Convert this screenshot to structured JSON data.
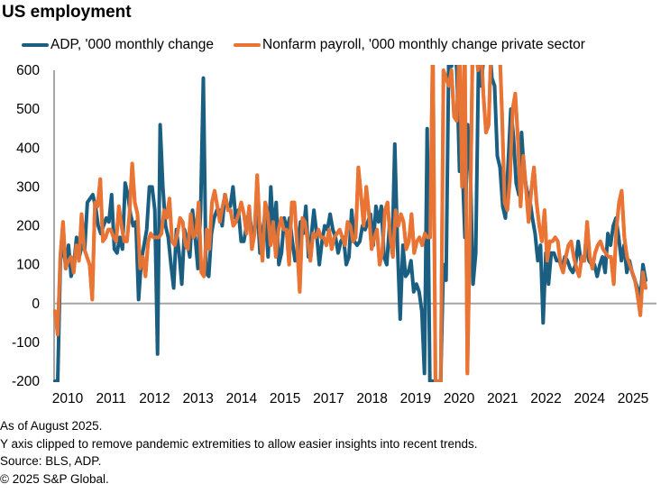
{
  "chart_data": {
    "type": "line",
    "title": "US employment",
    "xlabel": "",
    "ylabel": "",
    "ylim": [
      -200,
      600
    ],
    "yticks": [
      -200,
      -100,
      0,
      100,
      200,
      300,
      400,
      500,
      600
    ],
    "xtick_labels": [
      "2010",
      "2011",
      "2012",
      "2013",
      "2014",
      "2015",
      "2017",
      "2018",
      "2019",
      "2020",
      "2021",
      "2022",
      "2024",
      "2025"
    ],
    "grid": false,
    "legend_position": "top",
    "series": [
      {
        "name": "ADP, '000 monthly change",
        "color": "#1a5f82",
        "values": [
          -200,
          -200,
          110,
          160,
          90,
          150,
          70,
          100,
          170,
          120,
          150,
          140,
          260,
          270,
          280,
          250,
          200,
          180,
          200,
          220,
          210,
          280,
          140,
          130,
          170,
          140,
          310,
          280,
          230,
          200,
          210,
          10,
          110,
          150,
          190,
          300,
          300,
          240,
          -130,
          460,
          300,
          200,
          170,
          100,
          40,
          190,
          130,
          50,
          190,
          160,
          120,
          240,
          170,
          90,
          240,
          580,
          80,
          70,
          180,
          220,
          240,
          240,
          200,
          280,
          250,
          250,
          300,
          220,
          240,
          160,
          160,
          200,
          240,
          180,
          190,
          250,
          130,
          190,
          230,
          120,
          300,
          180,
          260,
          100,
          130,
          220,
          190,
          220,
          160,
          110,
          140,
          210,
          180,
          250,
          120,
          170,
          240,
          180,
          100,
          160,
          200,
          190,
          230,
          190,
          170,
          130,
          160,
          170,
          100,
          120,
          240,
          160,
          150,
          160,
          200,
          190,
          210,
          230,
          150,
          250,
          210,
          250,
          120,
          100,
          200,
          130,
          410,
          150,
          -40,
          150,
          70,
          80,
          110,
          30,
          50,
          30,
          -20,
          -180,
          450,
          -200,
          -200,
          -200,
          -200,
          -200,
          100,
          60,
          640,
          610,
          680,
          600,
          340,
          360,
          170,
          460,
          340,
          50,
          130,
          610,
          560,
          640,
          640,
          690,
          580,
          560,
          380,
          350,
          250,
          220,
          360,
          500,
          430,
          310,
          280,
          440,
          330,
          290,
          270,
          220,
          180,
          110,
          150,
          -50,
          130,
          50,
          130,
          130,
          110,
          110,
          90,
          120,
          110,
          90,
          80,
          100,
          160,
          110,
          110,
          150,
          110,
          100,
          100,
          70,
          100,
          120,
          80,
          180,
          150,
          200,
          220,
          170,
          110,
          150,
          80,
          110,
          80,
          60,
          40,
          10,
          100,
          60
        ],
        "values_note": "approximate monthly readings, clipped to y-range"
      },
      {
        "name": "Nonfarm payroll, '000 monthly change private sector",
        "color": "#ea7434",
        "values": [
          -20,
          -80,
          120,
          210,
          90,
          110,
          120,
          80,
          150,
          110,
          230,
          140,
          120,
          100,
          10,
          260,
          250,
          320,
          160,
          170,
          190,
          190,
          170,
          160,
          250,
          200,
          160,
          160,
          230,
          360,
          260,
          230,
          90,
          120,
          70,
          160,
          180,
          170,
          170,
          170,
          180,
          240,
          220,
          270,
          160,
          150,
          180,
          220,
          210,
          150,
          140,
          230,
          170,
          180,
          260,
          80,
          70,
          190,
          140,
          260,
          290,
          250,
          210,
          250,
          280,
          240,
          240,
          200,
          210,
          230,
          260,
          230,
          180,
          250,
          140,
          180,
          330,
          180,
          110,
          260,
          230,
          150,
          210,
          120,
          190,
          220,
          190,
          190,
          100,
          260,
          260,
          150,
          30,
          220,
          210,
          160,
          110,
          180,
          170,
          190,
          170,
          170,
          150,
          190,
          140,
          170,
          180,
          190,
          170,
          150,
          210,
          200,
          160,
          170,
          350,
          280,
          200,
          300,
          230,
          140,
          170,
          190,
          100,
          130,
          240,
          260,
          170,
          120,
          240,
          200,
          230,
          210,
          140,
          160,
          230,
          130,
          160,
          170,
          150,
          180,
          170,
          170,
          680,
          -200,
          -200,
          -200,
          600,
          580,
          560,
          600,
          480,
          470,
          680,
          300,
          680,
          -180,
          200,
          680,
          680,
          600,
          680,
          540,
          440,
          460,
          680,
          680,
          680,
          680,
          490,
          260,
          240,
          320,
          500,
          540,
          420,
          250,
          380,
          300,
          210,
          290,
          350,
          260,
          200,
          160,
          240,
          110,
          160,
          160,
          170,
          160,
          100,
          80,
          120,
          150,
          160,
          120,
          90,
          70,
          120,
          110,
          210,
          120,
          90,
          130,
          150,
          160,
          140,
          130,
          120,
          120,
          50,
          190,
          260,
          290,
          170,
          120,
          100,
          80,
          60,
          20,
          -30,
          80,
          40
        ],
        "values_note": "approximate monthly readings, clipped to y-range"
      }
    ]
  },
  "header": {
    "title": "US employment"
  },
  "legend": {
    "items": [
      {
        "label": "ADP, '000 monthly change",
        "color": "#1a5f82"
      },
      {
        "label": "Nonfarm payroll, '000 monthly change private sector",
        "color": "#ea7434"
      }
    ]
  },
  "footnotes": {
    "as_of": "As of August 2025.",
    "clip_note": "Y axis clipped to remove pandemic extremities to allow easier insights into recent trends.",
    "source": "Source: BLS, ADP.",
    "copyright": "© 2025 S&P Global."
  },
  "colors": {
    "axis": "#a6a6a6",
    "adp": "#1a5f82",
    "nfp": "#ea7434"
  }
}
